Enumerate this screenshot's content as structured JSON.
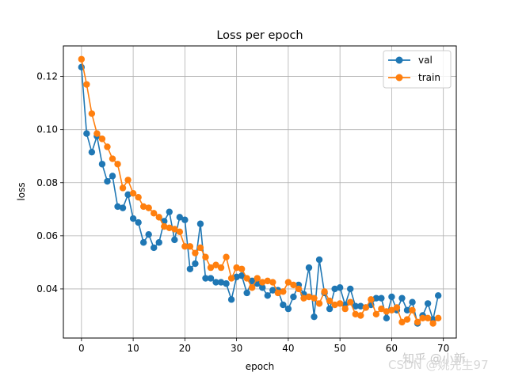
{
  "chart_data": {
    "type": "line",
    "title": "Loss per epoch",
    "xlabel": "epoch",
    "ylabel": "loss",
    "xlim": [
      -3.5,
      72.5
    ],
    "ylim": [
      0.0215,
      0.1315
    ],
    "xticks": [
      0,
      10,
      20,
      30,
      40,
      50,
      60,
      70
    ],
    "yticks": [
      0.04,
      0.06,
      0.08,
      0.1,
      0.12
    ],
    "xtick_labels": [
      "0",
      "10",
      "20",
      "30",
      "40",
      "50",
      "60",
      "70"
    ],
    "ytick_labels": [
      "0.04",
      "0.06",
      "0.08",
      "0.10",
      "0.12"
    ],
    "grid": true,
    "legend_position": "top-right",
    "x": [
      0,
      1,
      2,
      3,
      4,
      5,
      6,
      7,
      8,
      9,
      10,
      11,
      12,
      13,
      14,
      15,
      16,
      17,
      18,
      19,
      20,
      21,
      22,
      23,
      24,
      25,
      26,
      27,
      28,
      29,
      30,
      31,
      32,
      33,
      34,
      35,
      36,
      37,
      38,
      39,
      40,
      41,
      42,
      43,
      44,
      45,
      46,
      47,
      48,
      49,
      50,
      51,
      52,
      53,
      54,
      55,
      56,
      57,
      58,
      59,
      60,
      61,
      62,
      63,
      64,
      65,
      66,
      67,
      68,
      69
    ],
    "series": [
      {
        "name": "val",
        "color": "#1f77b4",
        "values": [
          0.1235,
          0.0985,
          0.0915,
          0.0975,
          0.087,
          0.0805,
          0.0825,
          0.071,
          0.0705,
          0.0755,
          0.0665,
          0.065,
          0.0575,
          0.0605,
          0.0555,
          0.0575,
          0.0655,
          0.069,
          0.0585,
          0.067,
          0.066,
          0.0475,
          0.0495,
          0.0645,
          0.044,
          0.044,
          0.0425,
          0.0425,
          0.042,
          0.036,
          0.0445,
          0.045,
          0.0385,
          0.043,
          0.042,
          0.0405,
          0.0375,
          0.0395,
          0.0395,
          0.034,
          0.0325,
          0.037,
          0.0415,
          0.038,
          0.048,
          0.0295,
          0.051,
          0.0385,
          0.0325,
          0.04,
          0.0405,
          0.034,
          0.04,
          0.0335,
          0.0335,
          0.033,
          0.034,
          0.0365,
          0.0365,
          0.029,
          0.037,
          0.032,
          0.0365,
          0.032,
          0.035,
          0.027,
          0.03,
          0.0345,
          0.0285,
          0.0375
        ]
      },
      {
        "name": "train",
        "color": "#ff7f0e",
        "values": [
          0.1265,
          0.117,
          0.106,
          0.0985,
          0.0965,
          0.0935,
          0.089,
          0.087,
          0.078,
          0.081,
          0.076,
          0.0745,
          0.071,
          0.0705,
          0.0685,
          0.067,
          0.0635,
          0.063,
          0.0625,
          0.0615,
          0.056,
          0.056,
          0.0535,
          0.0555,
          0.052,
          0.048,
          0.049,
          0.048,
          0.052,
          0.044,
          0.048,
          0.0475,
          0.044,
          0.0405,
          0.044,
          0.0425,
          0.043,
          0.0425,
          0.0385,
          0.039,
          0.0425,
          0.0415,
          0.04,
          0.0365,
          0.037,
          0.0365,
          0.0345,
          0.039,
          0.0355,
          0.034,
          0.0345,
          0.0325,
          0.035,
          0.0305,
          0.03,
          0.033,
          0.036,
          0.0305,
          0.0325,
          0.0315,
          0.032,
          0.033,
          0.0275,
          0.0285,
          0.032,
          0.0275,
          0.029,
          0.029,
          0.027,
          0.029
        ]
      }
    ]
  },
  "watermark": {
    "line1": "知乎 @小新",
    "line2": "CSDN @姚先生97"
  }
}
